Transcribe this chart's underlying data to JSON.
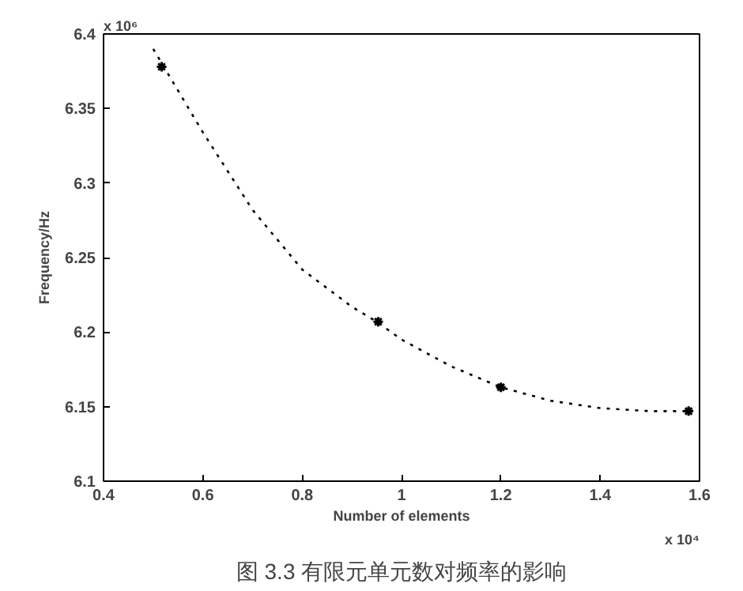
{
  "chart_data": {
    "type": "scatter",
    "xlabel": "Number of elements",
    "ylabel": "Frequency/Hz",
    "annotations": [
      "x 10⁴",
      "x 10⁶",
      "图 3.3 有限元单元数对频率的影响"
    ],
    "series": [
      {
        "color": "#000000",
        "marker": "cross",
        "x": [
          0.517,
          0.953,
          1.2,
          1.578
        ],
        "values": [
          6.378,
          6.207,
          6.163,
          6.147
        ]
      },
      {
        "type": "line",
        "color": "#000000",
        "line_style": "dotted",
        "x": [
          0.5,
          0.6,
          0.7,
          0.8,
          0.9,
          0.95,
          1.0,
          1.1,
          1.2,
          1.3,
          1.4,
          1.5,
          1.58
        ],
        "values": [
          6.39,
          6.334,
          6.282,
          6.242,
          6.217,
          6.207,
          6.195,
          6.177,
          6.163,
          6.154,
          6.149,
          6.147,
          6.147
        ]
      }
    ],
    "xlim": [
      0.4,
      1.6
    ],
    "xticks": [
      0.4,
      0.6,
      0.8,
      1,
      1.2,
      1.4,
      1.6
    ],
    "ylim": [
      6.1,
      6.4
    ],
    "yticks": [
      6.1,
      6.15,
      6.2,
      6.25,
      6.3,
      6.35,
      6.4
    ],
    "grid": false
  }
}
